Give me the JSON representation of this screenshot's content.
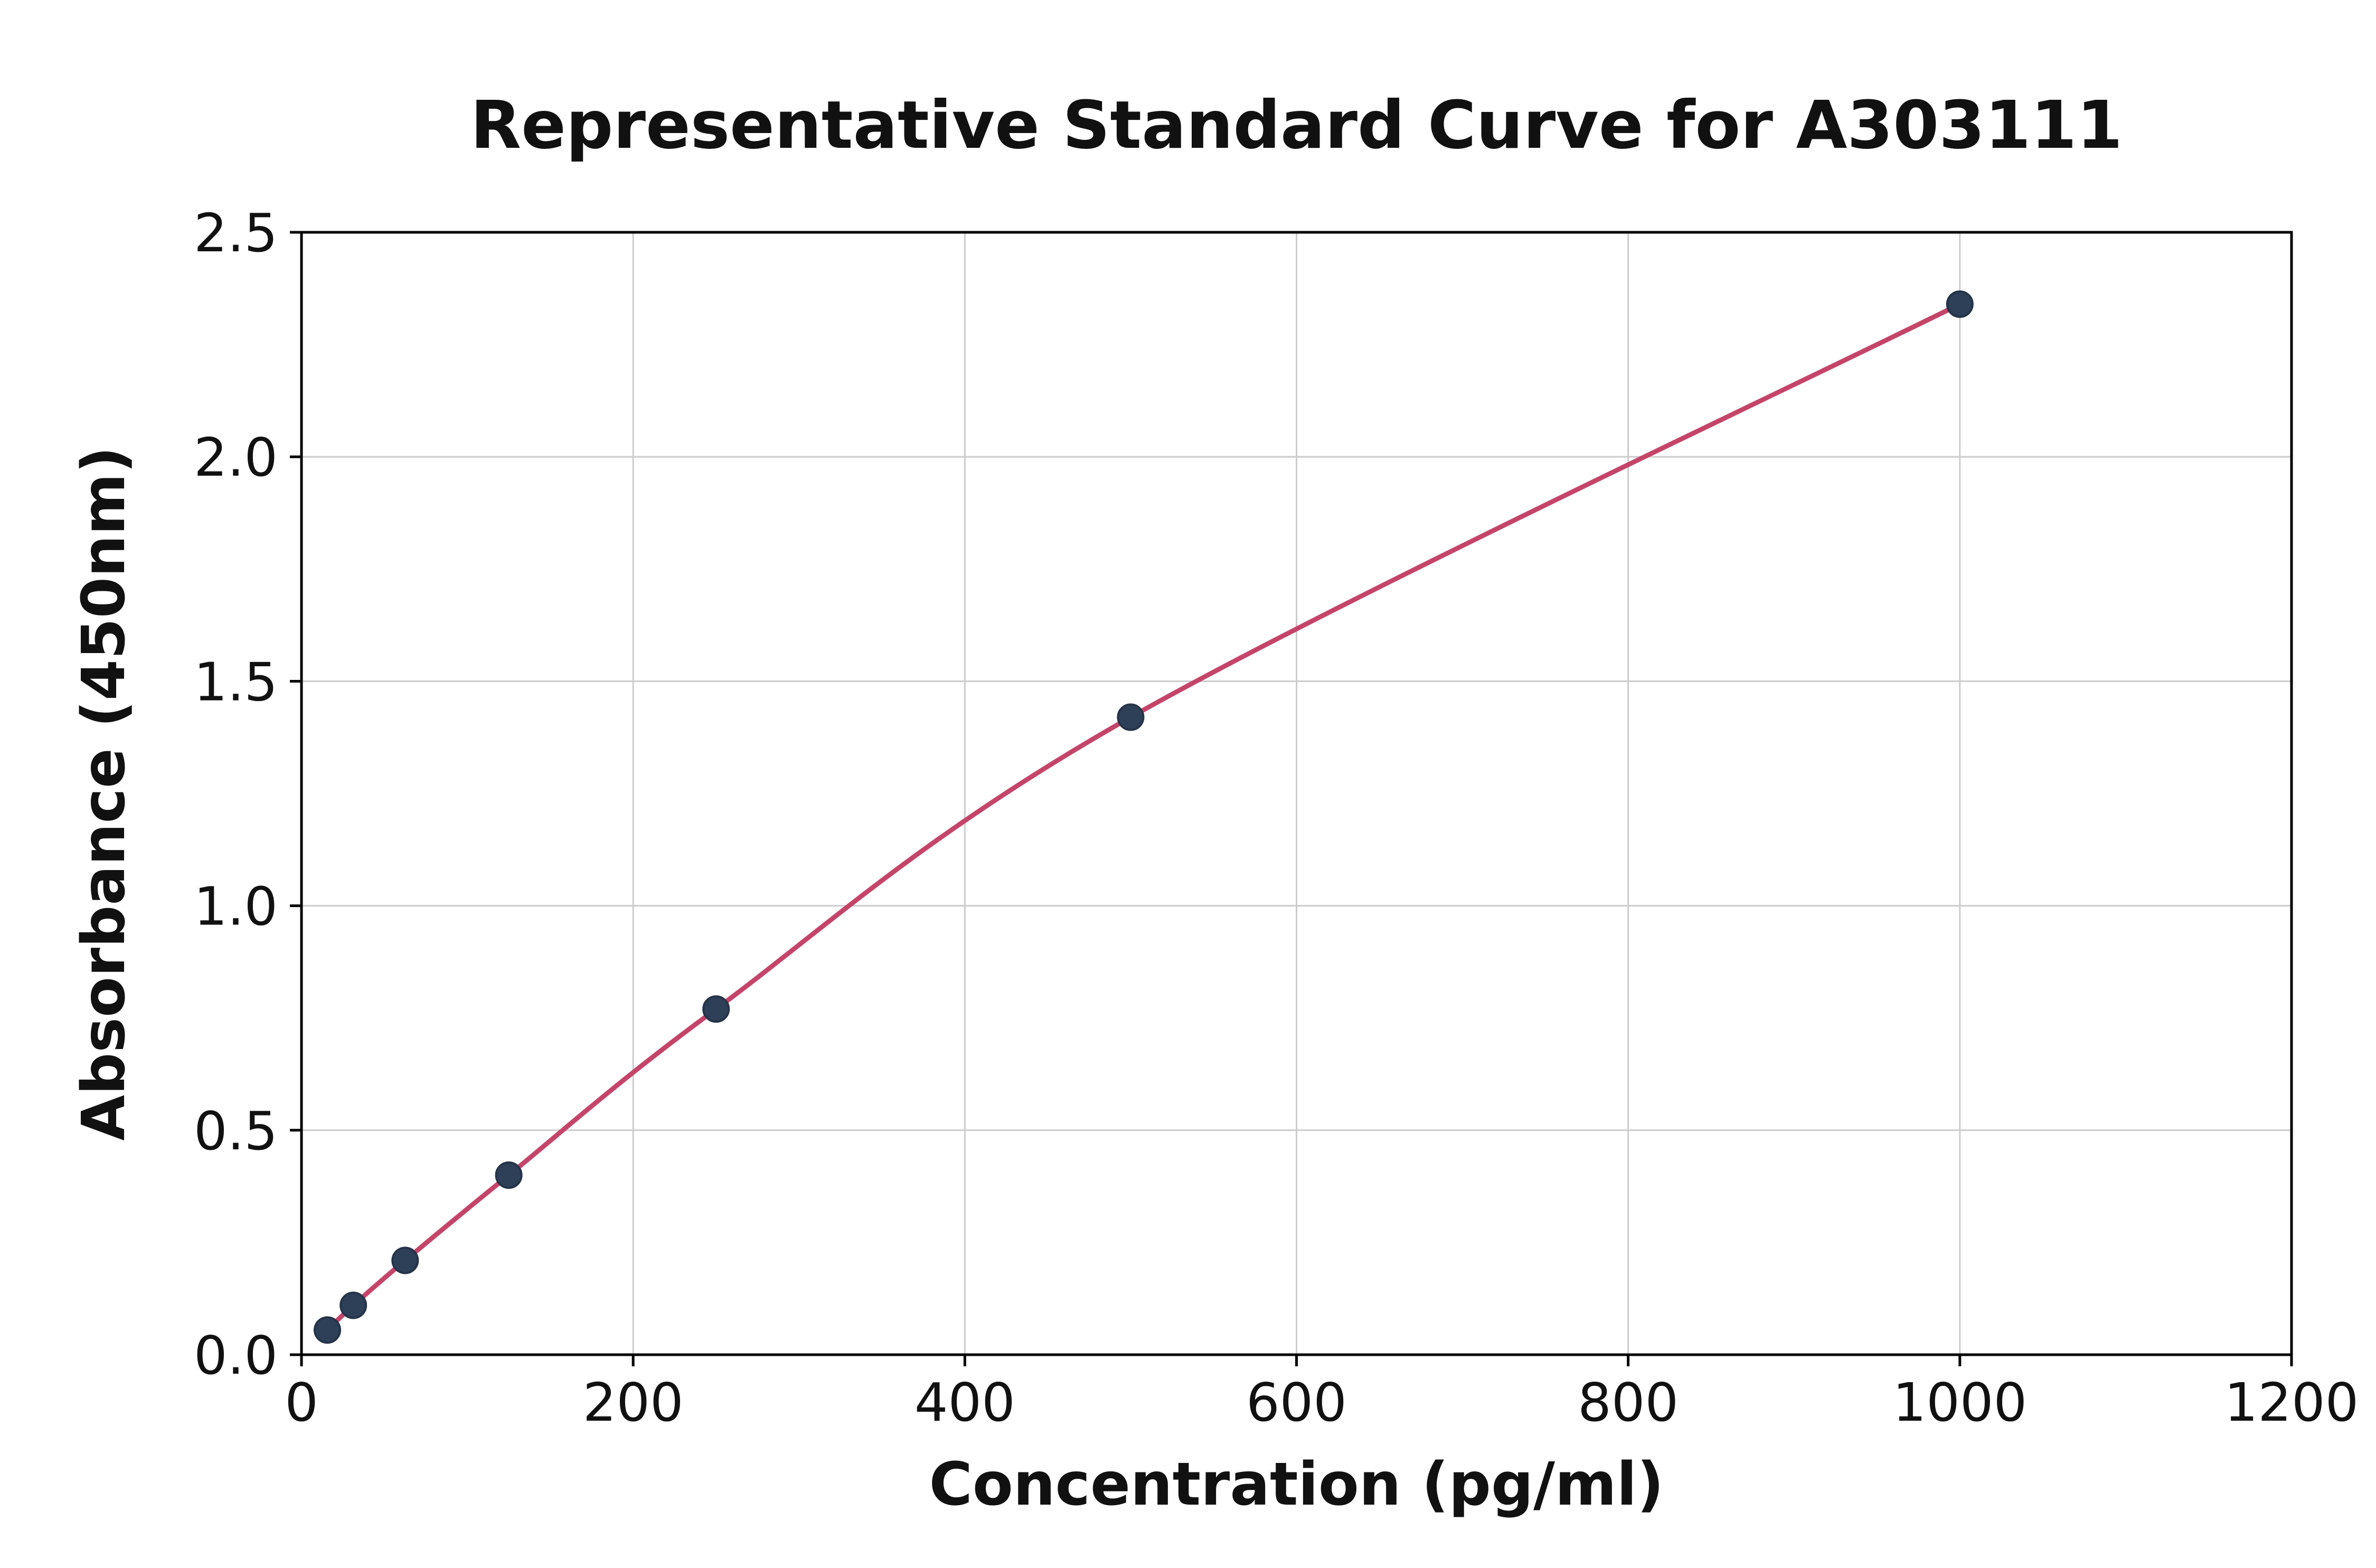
{
  "chart_data": {
    "type": "line",
    "title": "Representative Standard Curve for A303111",
    "xlabel": "Concentration (pg/ml)",
    "ylabel": "Absorbance (450nm)",
    "x": [
      15.6,
      31.25,
      62.5,
      125,
      250,
      500,
      1000
    ],
    "y": [
      0.055,
      0.11,
      0.21,
      0.4,
      0.77,
      1.42,
      2.34
    ],
    "xlim": [
      0,
      1200
    ],
    "ylim": [
      0,
      2.5
    ],
    "xticks": [
      0,
      200,
      400,
      600,
      800,
      1000,
      1200
    ],
    "yticks": [
      0.0,
      0.5,
      1.0,
      1.5,
      2.0,
      2.5
    ],
    "y_tick_decimals": 1,
    "grid": true,
    "legend_position": "none",
    "line_color": "#c44569",
    "marker_color": "#2e4057",
    "marker_edge_color": "#253448",
    "grid_color": "#cccccc",
    "spine_color": "#000000"
  }
}
